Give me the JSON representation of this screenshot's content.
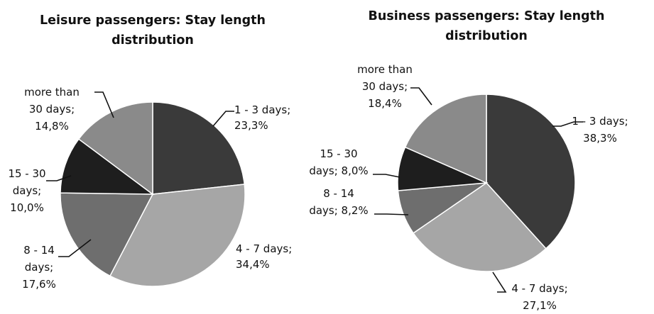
{
  "chart_data": [
    {
      "type": "pie",
      "title_lines": [
        "Leisure passengers: Stay length",
        "distribution"
      ],
      "slices": [
        {
          "label_lines": [
            "1 - 3 days;",
            "23,3%"
          ],
          "value": 23.3,
          "color": "#3a3a3a"
        },
        {
          "label_lines": [
            "4 - 7 days;",
            "34,4%"
          ],
          "value": 34.4,
          "color": "#a6a6a6"
        },
        {
          "label_lines": [
            "8 - 14",
            "days;",
            "17,6%"
          ],
          "value": 17.6,
          "color": "#6e6e6e"
        },
        {
          "label_lines": [
            "15 - 30",
            "days;",
            "10,0%"
          ],
          "value": 10.0,
          "color": "#1e1e1e"
        },
        {
          "label_lines": [
            "more than",
            "30 days;",
            "14,8%"
          ],
          "value": 14.8,
          "color": "#8a8a8a"
        }
      ]
    },
    {
      "type": "pie",
      "title_lines": [
        "Business passengers: Stay length",
        "distribution"
      ],
      "slices": [
        {
          "label_lines": [
            "1 - 3 days;",
            "38,3%"
          ],
          "value": 38.3,
          "color": "#3a3a3a"
        },
        {
          "label_lines": [
            "4 - 7 days;",
            "27,1%"
          ],
          "value": 27.1,
          "color": "#a6a6a6"
        },
        {
          "label_lines": [
            "8 - 14",
            "days; 8,2%"
          ],
          "value": 8.2,
          "color": "#6e6e6e"
        },
        {
          "label_lines": [
            "15 - 30",
            "days; 8,0%"
          ],
          "value": 8.0,
          "color": "#1e1e1e"
        },
        {
          "label_lines": [
            "more than",
            "30 days;",
            "18,4%"
          ],
          "value": 18.4,
          "color": "#8a8a8a"
        }
      ]
    }
  ]
}
